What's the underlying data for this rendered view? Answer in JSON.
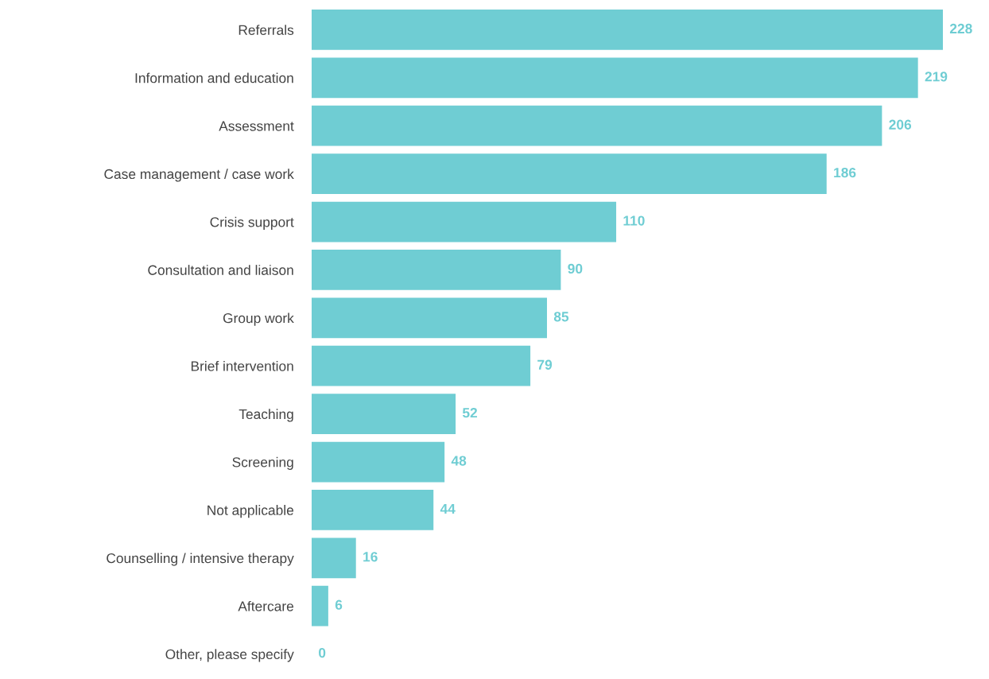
{
  "chart_data": {
    "type": "bar",
    "orientation": "horizontal",
    "categories": [
      "Referrals",
      "Information and education",
      "Assessment",
      "Case management / case work",
      "Crisis support",
      "Consultation and liaison",
      "Group work",
      "Brief intervention",
      "Teaching",
      "Screening",
      "Not applicable",
      "Counselling / intensive therapy",
      "Aftercare",
      "Other, please specify"
    ],
    "values": [
      228,
      219,
      206,
      186,
      110,
      90,
      85,
      79,
      52,
      48,
      44,
      16,
      6,
      0
    ],
    "color": "#6fcdd3",
    "data_labels": true,
    "grid": false,
    "legend": false,
    "tick_labels": "y"
  }
}
